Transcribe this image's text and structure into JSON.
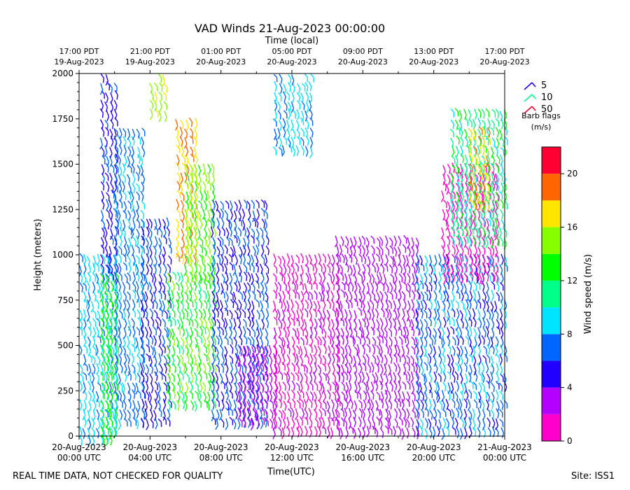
{
  "chart_data": {
    "type": "wind-barbs",
    "title": "VAD Winds 21-Aug-2023 00:00:00",
    "top_axis_label": "Time (local)",
    "xlabel": "Time(UTC)",
    "ylabel": "Height (meters)",
    "xlim_hours": [
      0,
      24
    ],
    "ylim": [
      0,
      2000
    ],
    "y_ticks": [
      0,
      250,
      500,
      750,
      1000,
      1250,
      1500,
      1750,
      2000
    ],
    "x_ticks": [
      {
        "hour": 0,
        "line1": "20-Aug-2023",
        "line2": "00:00 UTC"
      },
      {
        "hour": 4,
        "line1": "20-Aug-2023",
        "line2": "04:00 UTC"
      },
      {
        "hour": 8,
        "line1": "20-Aug-2023",
        "line2": "08:00 UTC"
      },
      {
        "hour": 12,
        "line1": "20-Aug-2023",
        "line2": "12:00 UTC"
      },
      {
        "hour": 16,
        "line1": "20-Aug-2023",
        "line2": "16:00 UTC"
      },
      {
        "hour": 20,
        "line1": "20-Aug-2023",
        "line2": "20:00 UTC"
      },
      {
        "hour": 24,
        "line1": "21-Aug-2023",
        "line2": "00:00 UTC"
      }
    ],
    "top_ticks": [
      {
        "hour": 0,
        "line1": "17:00 PDT",
        "line2": "19-Aug-2023"
      },
      {
        "hour": 4,
        "line1": "21:00 PDT",
        "line2": "19-Aug-2023"
      },
      {
        "hour": 8,
        "line1": "01:00 PDT",
        "line2": "20-Aug-2023"
      },
      {
        "hour": 12,
        "line1": "05:00 PDT",
        "line2": "20-Aug-2023"
      },
      {
        "hour": 16,
        "line1": "09:00 PDT",
        "line2": "20-Aug-2023"
      },
      {
        "hour": 20,
        "line1": "13:00 PDT",
        "line2": "20-Aug-2023"
      },
      {
        "hour": 24,
        "line1": "17:00 PDT",
        "line2": "20-Aug-2023"
      }
    ],
    "colorbar": {
      "label": "Wind speed (m/s)",
      "ticks": [
        0,
        4,
        8,
        12,
        16,
        20
      ],
      "max": 22,
      "colors": [
        "#ff00cc",
        "#b300ff",
        "#2200ff",
        "#0066ff",
        "#00e5ff",
        "#00ff88",
        "#00ff00",
        "#88ff00",
        "#ffe600",
        "#ff6600",
        "#ff0033"
      ]
    },
    "barb_legend": {
      "title": "Barb flags",
      "units": "(m/s)",
      "entries": [
        {
          "label": "5",
          "color": "#2200ff"
        },
        {
          "label": "10",
          "color": "#00ff88"
        },
        {
          "label": "50",
          "color": "#ff0033"
        }
      ]
    },
    "speed_regions": [
      {
        "hour": [
          0.0,
          2.0
        ],
        "height": [
          0,
          1000
        ],
        "speed": [
          7,
          10
        ]
      },
      {
        "hour": [
          1.2,
          2.2
        ],
        "height": [
          0,
          900
        ],
        "speed": [
          13,
          14
        ]
      },
      {
        "hour": [
          1.2,
          2.0
        ],
        "height": [
          900,
          2000
        ],
        "speed": [
          4,
          7
        ]
      },
      {
        "hour": [
          2.0,
          3.5
        ],
        "height": [
          100,
          1700
        ],
        "speed": [
          6,
          9
        ]
      },
      {
        "hour": [
          3.5,
          5.0
        ],
        "height": [
          100,
          1200
        ],
        "speed": [
          5,
          7
        ]
      },
      {
        "hour": [
          3.8,
          4.8
        ],
        "height": [
          1780,
          2000
        ],
        "speed": [
          14,
          17
        ]
      },
      {
        "hour": [
          5.0,
          7.5
        ],
        "height": [
          200,
          900
        ],
        "speed": [
          11,
          15
        ]
      },
      {
        "hour": [
          5.3,
          6.5
        ],
        "height": [
          1000,
          1750
        ],
        "speed": [
          16,
          19
        ]
      },
      {
        "hour": [
          6.0,
          7.5
        ],
        "height": [
          900,
          1500
        ],
        "speed": [
          13,
          15
        ]
      },
      {
        "hour": [
          7.5,
          10.5
        ],
        "height": [
          100,
          1300
        ],
        "speed": [
          5,
          7
        ]
      },
      {
        "hour": [
          9.0,
          11.0
        ],
        "height": [
          100,
          500
        ],
        "speed": [
          2,
          4
        ]
      },
      {
        "hour": [
          11.0,
          14.5
        ],
        "height": [
          50,
          1000
        ],
        "speed": [
          0,
          3
        ]
      },
      {
        "hour": [
          11.0,
          13.0
        ],
        "height": [
          1600,
          2000
        ],
        "speed": [
          7,
          10
        ]
      },
      {
        "hour": [
          14.5,
          19.0
        ],
        "height": [
          50,
          1100
        ],
        "speed": [
          2,
          4
        ]
      },
      {
        "hour": [
          19.0,
          24.0
        ],
        "height": [
          50,
          1000
        ],
        "speed": [
          5,
          9
        ]
      },
      {
        "hour": [
          20.5,
          23.5
        ],
        "height": [
          900,
          1500
        ],
        "speed": [
          0,
          2
        ]
      },
      {
        "hour": [
          21.0,
          24.0
        ],
        "height": [
          1100,
          1800
        ],
        "speed": [
          9,
          13
        ]
      },
      {
        "hour": [
          22.0,
          23.0
        ],
        "height": [
          1300,
          1700
        ],
        "speed": [
          16,
          19
        ]
      }
    ]
  },
  "footer": {
    "disclaimer": "REAL TIME DATA, NOT CHECKED FOR QUALITY",
    "site": "Site: ISS1"
  }
}
